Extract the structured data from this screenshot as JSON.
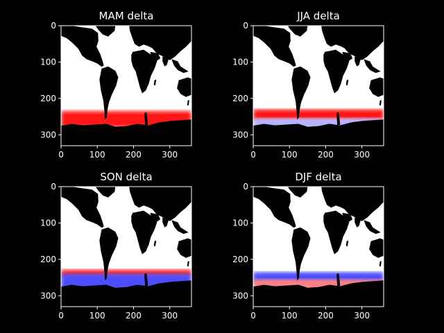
{
  "chart_data": [
    {
      "type": "heatmap",
      "title": "MAM delta",
      "xlabel": "",
      "ylabel": "",
      "x_ticks": [
        0,
        100,
        200,
        300
      ],
      "y_ticks": [
        0,
        100,
        200,
        300
      ],
      "xlim": [
        0,
        360
      ],
      "ylim": [
        330,
        0
      ],
      "colormap": "bwr",
      "land_color": "#000000",
      "bands": [
        {
          "name": "southern-ocean-red",
          "rows": [
            235,
            280
          ],
          "sign": "positive",
          "intensity": 0.9
        }
      ]
    },
    {
      "type": "heatmap",
      "title": "JJA delta",
      "xlabel": "",
      "ylabel": "",
      "x_ticks": [
        0,
        100,
        200,
        300
      ],
      "y_ticks": [
        0,
        100,
        200,
        300
      ],
      "xlim": [
        0,
        360
      ],
      "ylim": [
        330,
        0
      ],
      "colormap": "bwr",
      "land_color": "#000000",
      "bands": [
        {
          "name": "southern-ocean-red",
          "rows": [
            230,
            260
          ],
          "sign": "positive",
          "intensity": 0.9
        },
        {
          "name": "subpolar-blue",
          "rows": [
            255,
            285
          ],
          "sign": "negative",
          "intensity": 0.3
        }
      ]
    },
    {
      "type": "heatmap",
      "title": "SON delta",
      "xlabel": "",
      "ylabel": "",
      "x_ticks": [
        0,
        100,
        200,
        300
      ],
      "y_ticks": [
        0,
        100,
        200,
        300
      ],
      "xlim": [
        0,
        360
      ],
      "ylim": [
        330,
        0
      ],
      "colormap": "bwr",
      "land_color": "#000000",
      "bands": [
        {
          "name": "southern-ocean-red",
          "rows": [
            228,
            250
          ],
          "sign": "positive",
          "intensity": 0.85
        },
        {
          "name": "subpolar-blue",
          "rows": [
            240,
            285
          ],
          "sign": "negative",
          "intensity": 0.7
        }
      ]
    },
    {
      "type": "heatmap",
      "title": "DJF delta",
      "xlabel": "",
      "ylabel": "",
      "x_ticks": [
        0,
        100,
        200,
        300
      ],
      "y_ticks": [
        0,
        100,
        200,
        300
      ],
      "xlim": [
        0,
        360
      ],
      "ylim": [
        330,
        0
      ],
      "colormap": "bwr",
      "land_color": "#000000",
      "bands": [
        {
          "name": "southern-ocean-blue",
          "rows": [
            235,
            265
          ],
          "sign": "negative",
          "intensity": 0.7
        },
        {
          "name": "subpolar-red",
          "rows": [
            255,
            285
          ],
          "sign": "positive",
          "intensity": 0.5
        }
      ]
    }
  ]
}
